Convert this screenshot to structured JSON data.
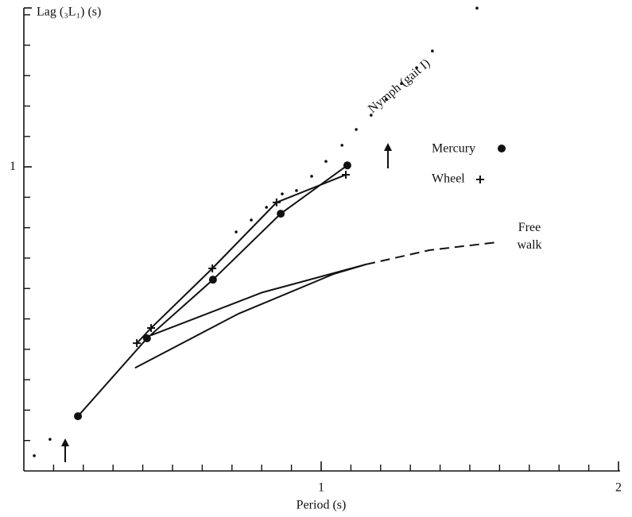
{
  "chart_data": {
    "type": "line",
    "y_label": "Lag (₃L₁) (s)",
    "x_label": "Period (s)",
    "xlim": [
      0,
      2
    ],
    "ylim": [
      0,
      1.52
    ],
    "xticks": [
      1,
      2
    ],
    "yticks": [
      1
    ],
    "x_minor_ticks": [
      0.1,
      0.2,
      0.3,
      0.4,
      0.5,
      0.6,
      0.7,
      0.8,
      0.9,
      1.1,
      1.2,
      1.3,
      1.4,
      1.5,
      1.6,
      1.7,
      1.8,
      1.9
    ],
    "y_minor_ticks": [
      0.1,
      0.2,
      0.3,
      0.4,
      0.5,
      0.6,
      0.7,
      0.8,
      0.9,
      1.1,
      1.2,
      1.3,
      1.4,
      1.5
    ],
    "series": [
      {
        "name": "Nymph (gait I)",
        "color": "#111111",
        "marker": "dot",
        "line": "none",
        "x": [
          0.035,
          0.088,
          0.714,
          0.765,
          0.816,
          0.869,
          0.917,
          0.968,
          1.016,
          1.07,
          1.118,
          1.168,
          1.219,
          1.27,
          1.321,
          1.374,
          1.524
        ],
        "y": [
          0.05,
          0.104,
          0.786,
          0.825,
          0.867,
          0.911,
          0.922,
          0.969,
          1.018,
          1.071,
          1.123,
          1.17,
          1.222,
          1.274,
          1.326,
          1.381,
          1.522
        ]
      },
      {
        "name": "Mercury",
        "color": "#111111",
        "marker": "circle",
        "line": "solid",
        "x": [
          0.182,
          0.414,
          0.636,
          0.864,
          1.088
        ],
        "y": [
          0.18,
          0.436,
          0.629,
          0.846,
          1.005
        ]
      },
      {
        "name": "Wheel",
        "color": "#111111",
        "marker": "plus",
        "line": "solid",
        "x": [
          0.38,
          0.428,
          0.634,
          0.85,
          1.083
        ],
        "y": [
          0.42,
          0.47,
          0.666,
          0.883,
          0.974
        ]
      },
      {
        "name": "Free walk",
        "color": "#111111",
        "marker": "none",
        "line": "solid",
        "x": [
          0.374,
          0.722,
          1.043,
          1.15,
          0.802,
          0.428
        ],
        "y": [
          0.339,
          0.517,
          0.648,
          0.679,
          0.587,
          0.446
        ]
      },
      {
        "color": "#111111",
        "marker": "none",
        "line": "dashed",
        "x": [
          1.15,
          1.364,
          1.591
        ],
        "y": [
          0.679,
          0.726,
          0.752
        ]
      }
    ]
  }
}
